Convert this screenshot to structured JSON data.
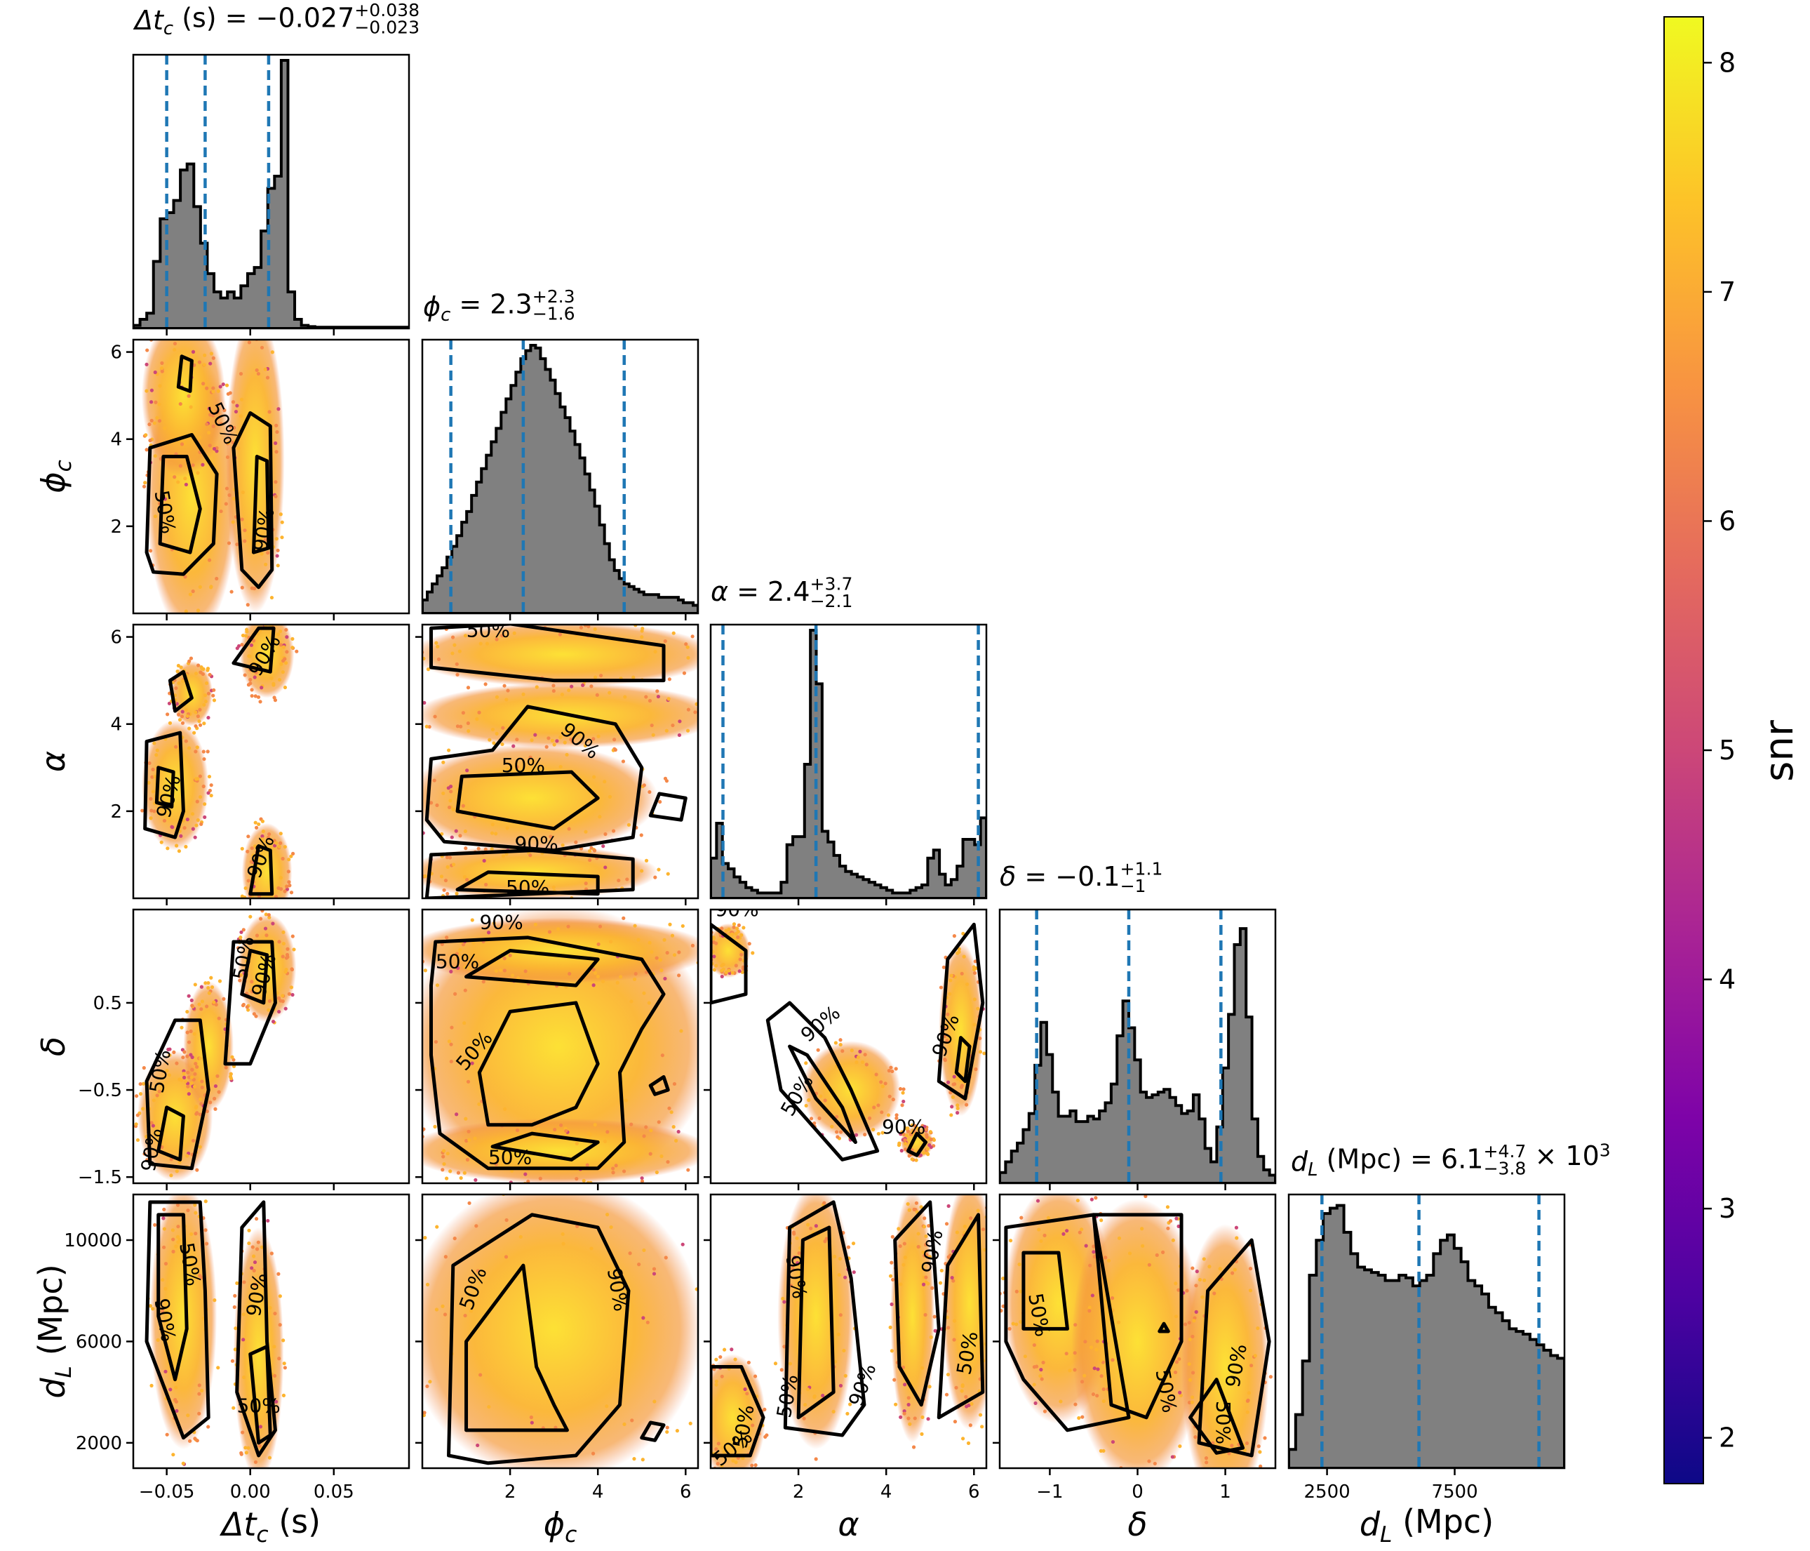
{
  "figure": {
    "type": "corner-plot",
    "colorbar": {
      "label": "snr",
      "range": [
        1.8,
        8.2
      ],
      "ticks": [
        "2",
        "3",
        "4",
        "5",
        "6",
        "7",
        "8"
      ],
      "tick_values": [
        2,
        3,
        4,
        5,
        6,
        7,
        8
      ],
      "colormap": "plasma"
    },
    "colors": {
      "hist_fill": "#808080",
      "quantile_line": "#1f77b4",
      "contour": "#000000"
    }
  },
  "chart_data": {
    "type": "corner",
    "parameters": [
      {
        "key": "dtc",
        "title": "Δt_c (s) = −0.027 (+0.038 / −0.023)",
        "title_main": "Δt",
        "title_sub": "c",
        "title_rest": " (s) = −0.027",
        "title_sup": "+0.038",
        "title_inf": "−0.023",
        "axis_label": "Δt",
        "axis_sub": "c",
        "axis_rest": " (s)",
        "range": [
          -0.07,
          0.095
        ],
        "ticks": [
          -0.05,
          0.0,
          0.05
        ],
        "tick_labels": [
          "−0.05",
          "0.00",
          "0.05"
        ],
        "quantiles": [
          -0.05,
          -0.027,
          0.011
        ],
        "hist_range": [
          0,
          44
        ],
        "hist": [
          0.5,
          1.5,
          2.5,
          11,
          18,
          19,
          21,
          26,
          27,
          20,
          14,
          9,
          6,
          5,
          6,
          5,
          7,
          9,
          10,
          16,
          23,
          25,
          44,
          6,
          1.5,
          0.5,
          0.3,
          0.2,
          0.2,
          0.2,
          0.2,
          0.2,
          0.2,
          0.2,
          0.2,
          0.2,
          0.2,
          0.2,
          0.2,
          0.2,
          0.2
        ]
      },
      {
        "key": "phic",
        "title": "ϕ_c = 2.3 (+2.3 / −1.6)",
        "title_main": "ϕ",
        "title_sub": "c",
        "title_rest": " = 2.3",
        "title_sup": "+2.3",
        "title_inf": "−1.6",
        "axis_label": "ϕ",
        "axis_sub": "c",
        "axis_rest": "",
        "range": [
          0.0,
          6.283
        ],
        "ticks": [
          2,
          4,
          6
        ],
        "tick_labels": [
          "2",
          "4",
          "6"
        ],
        "quantiles": [
          0.65,
          2.3,
          4.6
        ],
        "hist_range": [
          0,
          100
        ],
        "hist": [
          5,
          8,
          11,
          14,
          17,
          21,
          25,
          29,
          34,
          38,
          44,
          49,
          54,
          59,
          64,
          69,
          75,
          80,
          85,
          90,
          95,
          98,
          100,
          99,
          95,
          91,
          87,
          82,
          77,
          73,
          68,
          63,
          58,
          52,
          46,
          40,
          33,
          26,
          20,
          16,
          13,
          11,
          10,
          9,
          8,
          7,
          7,
          7,
          6,
          6,
          6,
          6,
          5,
          4,
          4,
          3
        ]
      },
      {
        "key": "alpha",
        "title": "α = 2.4 (+3.7 / −2.1)",
        "title_main": "α",
        "title_sub": "",
        "title_rest": " = 2.4",
        "title_sup": "+3.7",
        "title_inf": "−2.1",
        "axis_label": "α",
        "axis_sub": "",
        "axis_rest": "",
        "range": [
          0.0,
          6.283
        ],
        "ticks": [
          2,
          4,
          6
        ],
        "tick_labels": [
          "2",
          "4",
          "6"
        ],
        "quantiles": [
          0.28,
          2.4,
          6.1
        ],
        "hist_range": [
          0,
          100
        ],
        "hist": [
          15,
          28,
          13,
          11,
          8,
          6,
          4,
          3,
          2,
          2,
          2,
          2,
          6,
          20,
          23,
          23,
          50,
          100,
          80,
          25,
          21,
          16,
          12,
          10,
          9,
          8,
          7,
          6,
          5,
          4,
          3,
          2,
          2,
          2,
          3,
          4,
          5,
          15,
          18,
          9,
          5,
          7,
          12,
          22,
          22,
          20,
          30
        ]
      },
      {
        "key": "delta",
        "title": "δ = −0.1 (+1.1 / −1)",
        "title_main": "δ",
        "title_sub": "",
        "title_rest": " = −0.1",
        "title_sup": "+1.1",
        "title_inf": "−1",
        "axis_label": "δ",
        "axis_sub": "",
        "axis_rest": "",
        "range": [
          -1.571,
          1.571
        ],
        "ticks": [
          -1.5,
          -0.5,
          0.5
        ],
        "tick_labels": [
          "−1.5",
          "−0.5",
          "0.5"
        ],
        "ticks_x": [
          -1,
          0,
          1
        ],
        "tick_labels_x": [
          "−1",
          "0",
          "1"
        ],
        "quantiles": [
          -1.15,
          -0.1,
          0.95
        ],
        "hist_range": [
          0,
          100
        ],
        "hist": [
          4,
          8,
          12,
          15,
          20,
          26,
          44,
          60,
          48,
          34,
          25,
          25,
          27,
          23,
          23,
          25,
          24,
          27,
          30,
          37,
          55,
          68,
          58,
          46,
          34,
          32,
          33,
          34,
          35,
          32,
          29,
          26,
          27,
          33,
          24,
          13,
          8,
          21,
          43,
          63,
          89,
          95,
          62,
          24,
          10,
          5,
          3
        ]
      },
      {
        "key": "dL",
        "title": "d_L (Mpc) = 6.1 (+4.7 / −3.8) × 10³",
        "title_main": "d",
        "title_sub": "L",
        "title_rest": " (Mpc) = 6.1",
        "title_sup": "+4.7",
        "title_inf": "−3.8",
        "title_tail": " × 10",
        "title_tail_sup": "3",
        "axis_label": "d",
        "axis_sub": "L",
        "axis_rest": " (Mpc)",
        "range": [
          1000,
          11800
        ],
        "ticks": [
          2000,
          6000,
          10000
        ],
        "tick_labels": [
          "2000",
          "6000",
          "10000"
        ],
        "ticks_x": [
          2500,
          7500
        ],
        "tick_labels_x": [
          "2500",
          "7500"
        ],
        "quantiles": [
          2300,
          6100,
          10800
        ],
        "hist_range": [
          0,
          100
        ],
        "hist": [
          7,
          20,
          40,
          72,
          85,
          95,
          97,
          98,
          88,
          80,
          75,
          74,
          73,
          72,
          70,
          70,
          72,
          71,
          68,
          70,
          72,
          80,
          85,
          87,
          82,
          77,
          70,
          68,
          65,
          60,
          58,
          55,
          52,
          51,
          50,
          48,
          46,
          44,
          42,
          41
        ]
      }
    ],
    "contour_levels": [
      "50%",
      "90%"
    ]
  }
}
